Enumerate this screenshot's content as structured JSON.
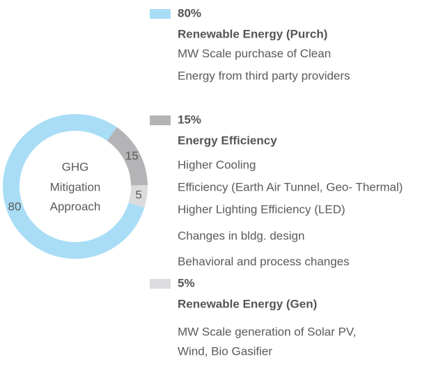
{
  "chart_data": {
    "type": "donut",
    "center_text": [
      "GHG",
      "Mitigation",
      "Approach"
    ],
    "categories": [
      "Renewable Energy (Purch)",
      "Energy Efficiency",
      "Renewable Energy (Gen)"
    ],
    "values": [
      80,
      15,
      5
    ],
    "value_labels": [
      "80%",
      "15%",
      "5%"
    ],
    "colors": [
      "#a9ddf6",
      "#b4b4b7",
      "#dcdcde"
    ],
    "descriptions": [
      [
        "MW Scale purchase of Clean",
        "Energy from third party providers"
      ],
      [
        "Higher Cooling",
        "Efficiency (Earth Air Tunnel, Geo- Thermal)",
        "Higher Lighting Efficiency (LED)",
        "Changes in bldg. design",
        "Behavioral and process changes"
      ],
      [
        "MW Scale generation of Solar PV,",
        "Wind, Bio Gasifier"
      ]
    ]
  }
}
